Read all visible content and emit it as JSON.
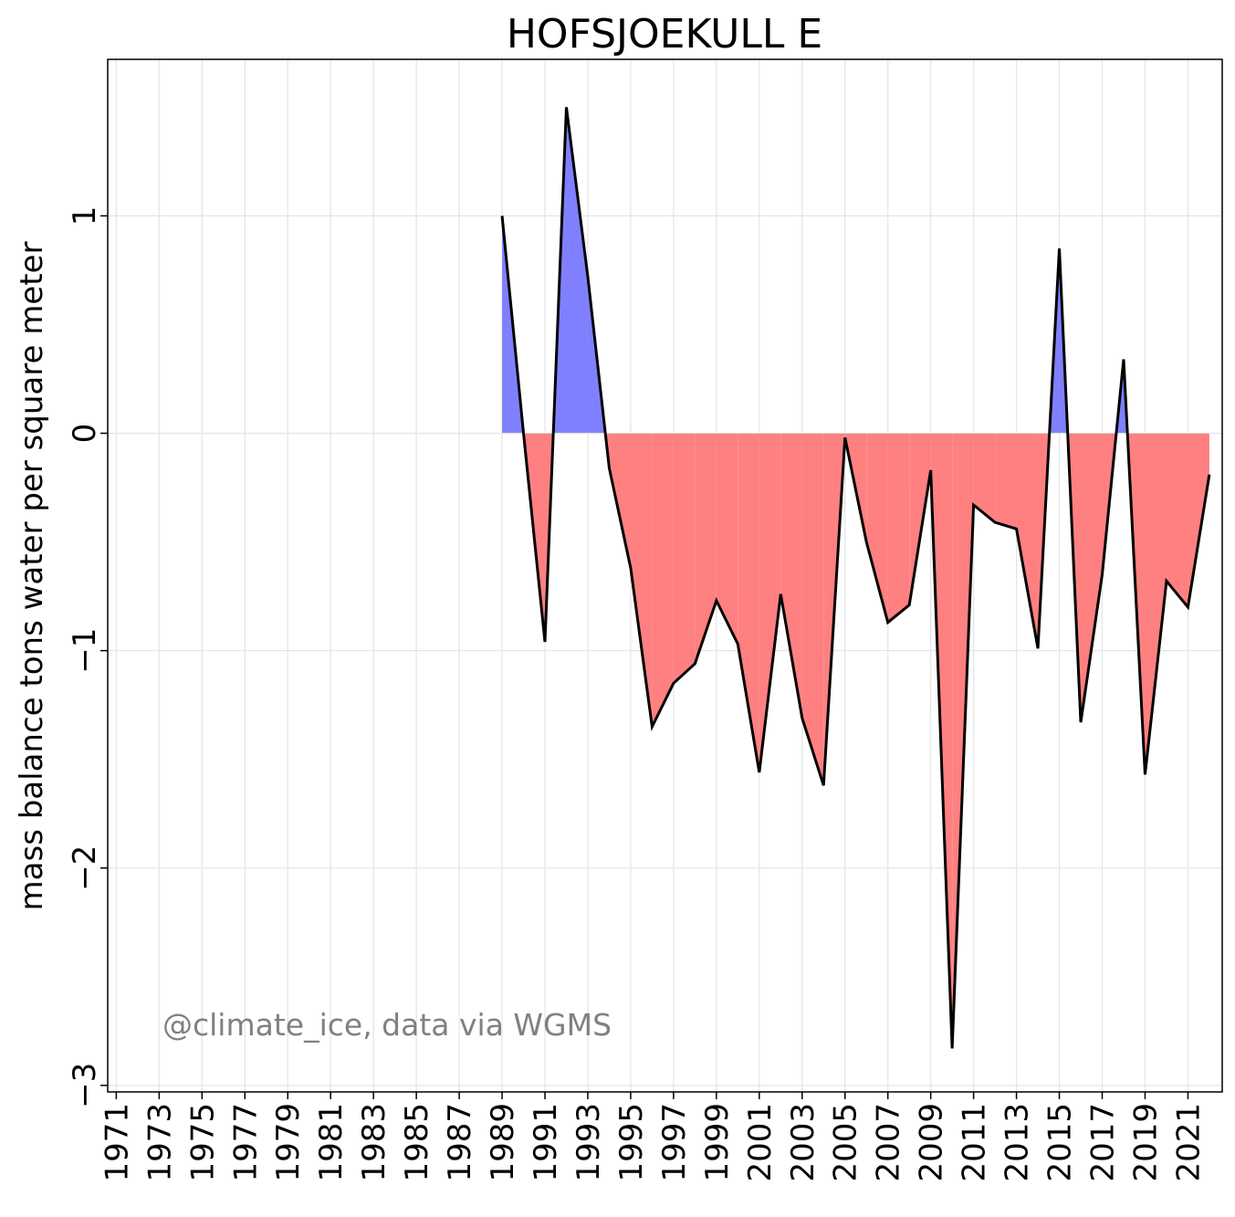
{
  "chart_data": {
    "type": "area",
    "title": "HOFSJOEKULL E",
    "xlabel": "",
    "ylabel": "mass balance tons water per square meter",
    "annotation": "@climate_ice, data via WGMS",
    "xlim": [
      1970.6,
      2022.6
    ],
    "ylim": [
      -3.03,
      1.72
    ],
    "xticks": [
      1971,
      1973,
      1975,
      1977,
      1979,
      1981,
      1983,
      1985,
      1987,
      1989,
      1991,
      1993,
      1995,
      1997,
      1999,
      2001,
      2003,
      2005,
      2007,
      2009,
      2011,
      2013,
      2015,
      2017,
      2019,
      2021
    ],
    "xtick_labels": [
      "1971",
      "1973",
      "1975",
      "1977",
      "1979",
      "1981",
      "1983",
      "1985",
      "1987",
      "1989",
      "1991",
      "1993",
      "1995",
      "1997",
      "1999",
      "2001",
      "2003",
      "2005",
      "2007",
      "2009",
      "2011",
      "2013",
      "2015",
      "2017",
      "2019",
      "2021"
    ],
    "yticks": [
      -3,
      -2,
      -1,
      0,
      1
    ],
    "ytick_labels": [
      "−3",
      "−2",
      "−1",
      "0",
      "1"
    ],
    "grid": true,
    "colors": {
      "positive": "#8080ff",
      "negative": "#ff8080",
      "line": "#000000",
      "grid": "#e6e6e6"
    },
    "x": [
      1989,
      1990,
      1991,
      1992,
      1993,
      1994,
      1995,
      1996,
      1997,
      1998,
      1999,
      2000,
      2001,
      2002,
      2003,
      2004,
      2005,
      2006,
      2007,
      2008,
      2009,
      2010,
      2011,
      2012,
      2013,
      2014,
      2015,
      2016,
      2017,
      2018,
      2019,
      2020,
      2021,
      2022
    ],
    "values": [
      1.0,
      0.0,
      -0.96,
      1.5,
      0.72,
      -0.16,
      -0.62,
      -1.35,
      -1.15,
      -1.06,
      -0.77,
      -0.97,
      -1.56,
      -0.74,
      -1.31,
      -1.62,
      -0.02,
      -0.5,
      -0.87,
      -0.79,
      -0.17,
      -2.83,
      -0.33,
      -0.41,
      -0.44,
      -0.99,
      0.85,
      -1.33,
      -0.65,
      0.34,
      -1.57,
      -0.68,
      -0.8,
      -0.19
    ]
  }
}
